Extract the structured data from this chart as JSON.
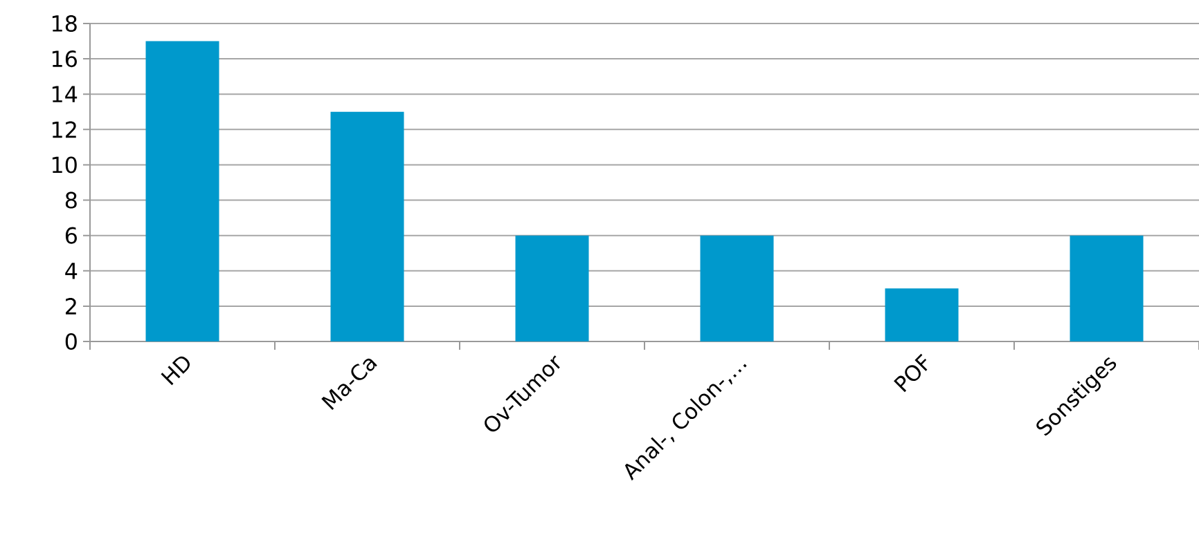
{
  "chart_data": {
    "type": "bar",
    "categories": [
      "HD",
      "Ma-Ca",
      "Ov-Tumor",
      "Anal-, Colon-,…",
      "POF",
      "Sonstiges"
    ],
    "values": [
      17,
      13,
      6,
      6,
      3,
      6
    ],
    "color": "#0099cc",
    "ylim": [
      0,
      18
    ],
    "yticks": [
      0,
      2,
      4,
      6,
      8,
      10,
      12,
      14,
      16,
      18
    ],
    "grid": "y"
  }
}
